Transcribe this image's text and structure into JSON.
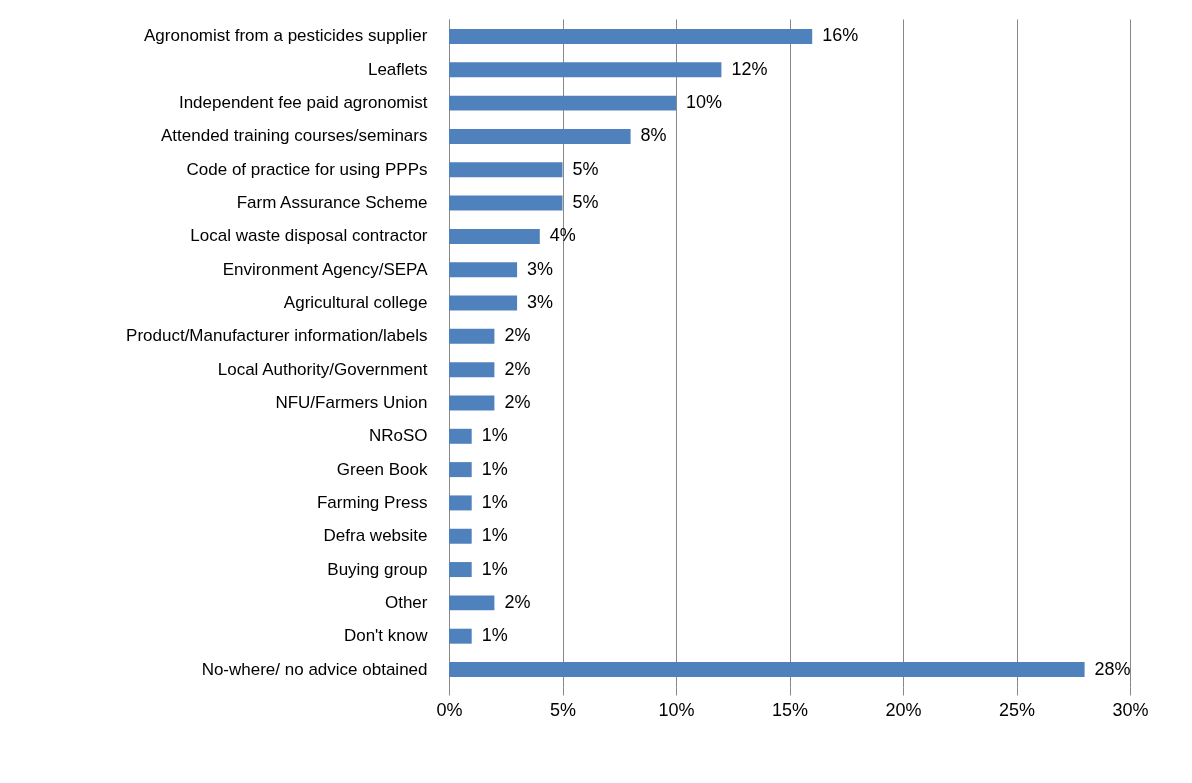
{
  "chart_data": {
    "type": "bar",
    "orientation": "horizontal",
    "categories": [
      "Agronomist from a pesticides supplier",
      "Leaflets",
      "Independent fee paid agronomist",
      "Attended training courses/seminars",
      "Code of practice for using PPPs",
      "Farm Assurance Scheme",
      "Local waste disposal contractor",
      "Environment Agency/SEPA",
      "Agricultural college",
      "Product/Manufacturer information/labels",
      "Local Authority/Government",
      "NFU/Farmers Union",
      "NRoSO",
      "Green Book",
      "Farming Press",
      "Defra website",
      "Buying group",
      "Other",
      "Don't know",
      "No-where/ no advice obtained"
    ],
    "values": [
      16,
      12,
      10,
      8,
      5,
      5,
      4,
      3,
      3,
      2,
      2,
      2,
      1,
      1,
      1,
      1,
      1,
      2,
      1,
      28
    ],
    "value_labels": [
      "16%",
      "12%",
      "10%",
      "8%",
      "5%",
      "5%",
      "4%",
      "3%",
      "3%",
      "2%",
      "2%",
      "2%",
      "1%",
      "1%",
      "1%",
      "1%",
      "1%",
      "2%",
      "1%",
      "28%"
    ],
    "color": "#4f81bd",
    "xlim": [
      0,
      30
    ],
    "xticks": [
      {
        "value": 0,
        "label": "0%"
      },
      {
        "value": 5,
        "label": "5%"
      },
      {
        "value": 10,
        "label": "10%"
      },
      {
        "value": 15,
        "label": "15%"
      },
      {
        "value": 20,
        "label": "20%"
      },
      {
        "value": 25,
        "label": "25%"
      },
      {
        "value": 30,
        "label": "30%"
      }
    ],
    "grid": "x"
  }
}
